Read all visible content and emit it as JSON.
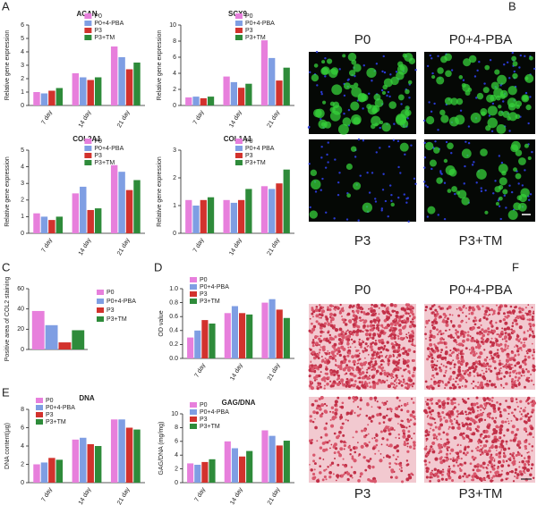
{
  "panels": [
    "A",
    "B",
    "C",
    "D",
    "E",
    "F"
  ],
  "fluorescence_labels": [
    "P0",
    "P0+4-PBA",
    "P3",
    "P3+TM"
  ],
  "histology_labels": [
    "P0",
    "P0+4-PBA",
    "P3",
    "P3+TM"
  ],
  "chart_data": [
    {
      "type": "bar",
      "title": "ACAN",
      "y_label": "Relative gene expression",
      "legend": "upper right",
      "categories": [
        "7 day",
        "14 day",
        "21 day"
      ],
      "ylim": [
        0,
        6
      ],
      "yticks": [
        0,
        1,
        2,
        3,
        4,
        5,
        6
      ],
      "series": [
        {
          "name": "P0",
          "color": "#e77fdc",
          "values": [
            1.0,
            2.4,
            4.4
          ]
        },
        {
          "name": "P0+4-PBA",
          "color": "#7f9ee3",
          "values": [
            0.9,
            2.1,
            3.6
          ]
        },
        {
          "name": "P3",
          "color": "#d2322d",
          "values": [
            1.1,
            1.9,
            2.7
          ]
        },
        {
          "name": "P3+TM",
          "color": "#2e8b3a",
          "values": [
            1.3,
            2.1,
            3.2
          ]
        }
      ]
    },
    {
      "type": "bar",
      "title": "SCX9",
      "y_label": "Relative gene expression",
      "legend": "upper right",
      "categories": [
        "7 day",
        "14 day",
        "21 day"
      ],
      "ylim": [
        0,
        10
      ],
      "yticks": [
        0,
        2,
        4,
        6,
        8,
        10
      ],
      "series": [
        {
          "name": "P0",
          "color": "#e77fdc",
          "values": [
            1.0,
            3.6,
            8.1
          ]
        },
        {
          "name": "P0+4-PBA",
          "color": "#7f9ee3",
          "values": [
            1.1,
            2.9,
            5.9
          ]
        },
        {
          "name": "P3",
          "color": "#d2322d",
          "values": [
            0.9,
            2.2,
            3.1
          ]
        },
        {
          "name": "P3+TM",
          "color": "#2e8b3a",
          "values": [
            1.1,
            2.7,
            4.7
          ]
        }
      ]
    },
    {
      "type": "bar",
      "title": "COL2A1",
      "y_label": "Relative gene expression",
      "legend": "upper right",
      "categories": [
        "7 day",
        "14 day",
        "21 day"
      ],
      "ylim": [
        0,
        5
      ],
      "yticks": [
        0,
        1,
        2,
        3,
        4,
        5
      ],
      "series": [
        {
          "name": "P0",
          "color": "#e77fdc",
          "values": [
            1.2,
            2.4,
            4.1
          ]
        },
        {
          "name": "P0+4-PBA",
          "color": "#7f9ee3",
          "values": [
            1.0,
            2.8,
            3.7
          ]
        },
        {
          "name": "P3",
          "color": "#d2322d",
          "values": [
            0.8,
            1.4,
            2.6
          ]
        },
        {
          "name": "P3+TM",
          "color": "#2e8b3a",
          "values": [
            1.0,
            1.5,
            3.2
          ]
        }
      ]
    },
    {
      "type": "bar",
      "title": "COL1A1",
      "y_label": "Relative gene expression",
      "legend": "upper right",
      "categories": [
        "7 day",
        "14 day",
        "21 day"
      ],
      "ylim": [
        0,
        3
      ],
      "yticks": [
        0,
        1,
        2,
        3
      ],
      "series": [
        {
          "name": "P0",
          "color": "#e77fdc",
          "values": [
            1.2,
            1.2,
            1.7
          ]
        },
        {
          "name": "P0+4 PBA",
          "color": "#7f9ee3",
          "values": [
            1.0,
            1.1,
            1.6
          ]
        },
        {
          "name": "P3",
          "color": "#d2322d",
          "values": [
            1.2,
            1.2,
            1.8
          ]
        },
        {
          "name": "P3+TM",
          "color": "#2e8b3a",
          "values": [
            1.3,
            1.6,
            2.3
          ]
        }
      ]
    },
    {
      "type": "bar",
      "y_label": "Positive area of COL2 staining",
      "legend": "right",
      "categories": [
        null
      ],
      "ylim": [
        0,
        60
      ],
      "yticks": [
        0,
        20,
        40,
        60
      ],
      "series": [
        {
          "name": "P0",
          "color": "#e77fdc",
          "values": [
            38
          ]
        },
        {
          "name": "P0+4-PBA",
          "color": "#7f9ee3",
          "values": [
            24
          ]
        },
        {
          "name": "P3",
          "color": "#d2322d",
          "values": [
            7
          ]
        },
        {
          "name": "P3+TM",
          "color": "#2e8b3a",
          "values": [
            19
          ]
        }
      ]
    },
    {
      "type": "bar",
      "y_label": "OD value",
      "legend": "upper left",
      "categories": [
        "7 day",
        "14 day",
        "21 day"
      ],
      "ylim": [
        0,
        1
      ],
      "yticks": [
        {
          "value": 0,
          "label": "0.0"
        },
        0.2,
        0.4,
        0.6,
        0.8,
        {
          "value": 1,
          "label": "1.0"
        }
      ],
      "series": [
        {
          "name": "P0",
          "color": "#e77fdc",
          "values": [
            0.3,
            0.65,
            0.8
          ]
        },
        {
          "name": "P0+4-PBA",
          "color": "#7f9ee3",
          "values": [
            0.4,
            0.75,
            0.85
          ]
        },
        {
          "name": "P3",
          "color": "#d2322d",
          "values": [
            0.55,
            0.65,
            0.7
          ]
        },
        {
          "name": "P3+TM",
          "color": "#2e8b3a",
          "values": [
            0.5,
            0.63,
            0.58
          ]
        }
      ]
    },
    {
      "type": "bar",
      "title": "DNA",
      "y_label": "DNA content(μg)",
      "legend": "upper left",
      "categories": [
        "7 day",
        "14 day",
        "21 day"
      ],
      "ylim": [
        0,
        8
      ],
      "yticks": [
        0,
        2,
        4,
        6,
        8
      ],
      "series": [
        {
          "name": "P0",
          "color": "#e77fdc",
          "values": [
            2.0,
            4.7,
            6.9
          ]
        },
        {
          "name": "P0+4-PBA",
          "color": "#7f9ee3",
          "values": [
            2.2,
            4.9,
            6.9
          ]
        },
        {
          "name": "P3",
          "color": "#d2322d",
          "values": [
            2.7,
            4.2,
            6.0
          ]
        },
        {
          "name": "P3+TM",
          "color": "#2e8b3a",
          "values": [
            2.5,
            4.0,
            5.8
          ]
        }
      ]
    },
    {
      "type": "bar",
      "title": "GAG/DNA",
      "y_label": "GAG/DNA (mg/mg)",
      "legend": "upper left",
      "categories": [
        "7 day",
        "14 day",
        "21 day"
      ],
      "ylim": [
        0,
        10
      ],
      "yticks": [
        0,
        2,
        4,
        6,
        8,
        10
      ],
      "series": [
        {
          "name": "P0",
          "color": "#e77fdc",
          "values": [
            2.8,
            6.0,
            7.6
          ]
        },
        {
          "name": "P0+4-PBA",
          "color": "#7f9ee3",
          "values": [
            2.6,
            5.0,
            6.8
          ]
        },
        {
          "name": "P3",
          "color": "#d2322d",
          "values": [
            3.0,
            3.8,
            5.4
          ]
        },
        {
          "name": "P3+TM",
          "color": "#2e8b3a",
          "values": [
            3.4,
            4.6,
            6.1
          ]
        }
      ]
    }
  ]
}
